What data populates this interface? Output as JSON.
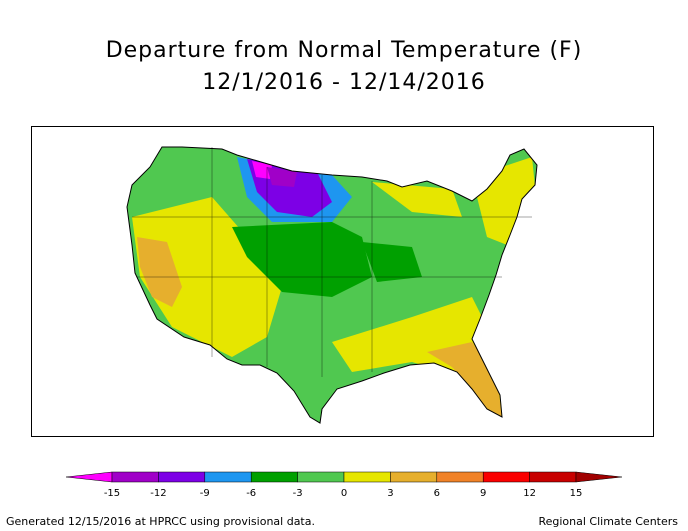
{
  "title": {
    "line1": "Departure from Normal Temperature (F)",
    "line2": "12/1/2016 - 12/14/2016"
  },
  "legend": {
    "ticks": [
      "-15",
      "-12",
      "-9",
      "-6",
      "-3",
      "0",
      "3",
      "6",
      "9",
      "12",
      "15"
    ],
    "colors": [
      "#ff00ff",
      "#a000c8",
      "#7d00e6",
      "#1e96f0",
      "#00a000",
      "#50c850",
      "#e6e600",
      "#e6af2d",
      "#f08228",
      "#fa0000",
      "#c80000",
      "#a00000"
    ]
  },
  "footer": {
    "left": "Generated 12/15/2016 at HPRCC using provisional data.",
    "right": "Regional Climate Centers"
  }
}
